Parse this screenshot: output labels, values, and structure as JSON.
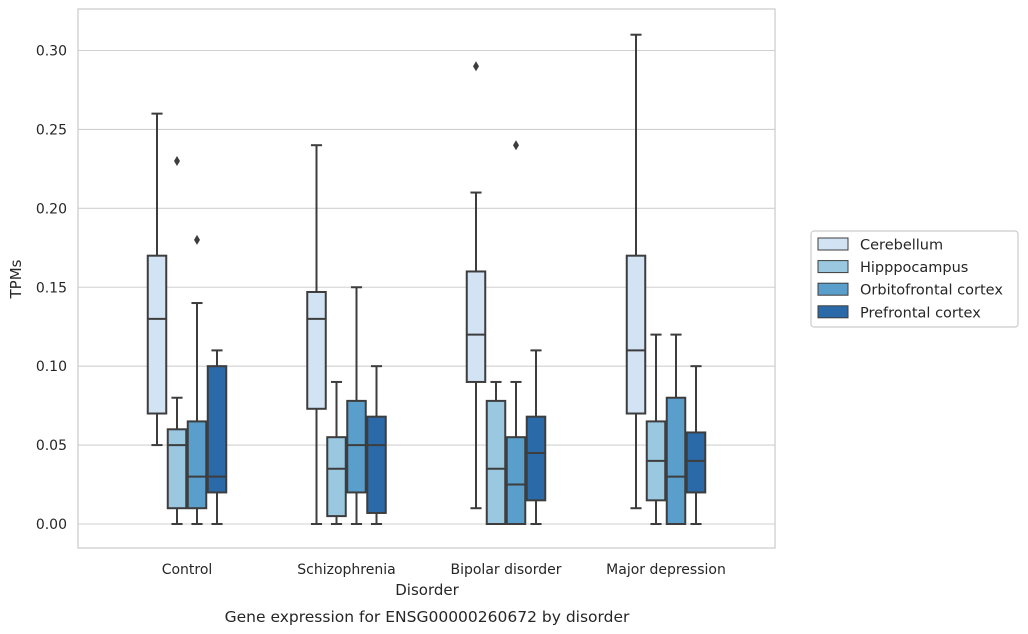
{
  "chart_data": {
    "type": "box",
    "caption": "Gene expression for ENSG00000260672 by disorder",
    "xlabel": "Disorder",
    "ylabel": "TPMs",
    "ylim": [
      -0.015,
      0.325
    ],
    "yticks": [
      "0.00",
      "0.05",
      "0.10",
      "0.15",
      "0.20",
      "0.25",
      "0.30"
    ],
    "grid": "horizontal",
    "legend_position": "right",
    "categories": [
      "Control",
      "Schizophrenia",
      "Bipolar disorder",
      "Major depression"
    ],
    "series": [
      {
        "name": "Cerebellum",
        "color": "#d2e3f3",
        "boxes": [
          {
            "whislo": 0.05,
            "q1": 0.07,
            "med": 0.13,
            "q3": 0.17,
            "whishi": 0.26,
            "fliers": []
          },
          {
            "whislo": 0.0,
            "q1": 0.073,
            "med": 0.13,
            "q3": 0.147,
            "whishi": 0.24,
            "fliers": []
          },
          {
            "whislo": 0.01,
            "q1": 0.09,
            "med": 0.12,
            "q3": 0.16,
            "whishi": 0.21,
            "fliers": [
              0.29
            ]
          },
          {
            "whislo": 0.01,
            "q1": 0.07,
            "med": 0.11,
            "q3": 0.17,
            "whishi": 0.31,
            "fliers": []
          }
        ]
      },
      {
        "name": "Hipppocampus",
        "color": "#9ac8e0",
        "boxes": [
          {
            "whislo": 0.0,
            "q1": 0.01,
            "med": 0.05,
            "q3": 0.06,
            "whishi": 0.08,
            "fliers": [
              0.23
            ]
          },
          {
            "whislo": 0.0,
            "q1": 0.005,
            "med": 0.035,
            "q3": 0.055,
            "whishi": 0.09,
            "fliers": []
          },
          {
            "whislo": 0.0,
            "q1": 0.0,
            "med": 0.035,
            "q3": 0.078,
            "whishi": 0.09,
            "fliers": []
          },
          {
            "whislo": 0.0,
            "q1": 0.015,
            "med": 0.04,
            "q3": 0.065,
            "whishi": 0.12,
            "fliers": []
          }
        ]
      },
      {
        "name": "Orbitofrontal cortex",
        "color": "#5a9fcc",
        "boxes": [
          {
            "whislo": 0.0,
            "q1": 0.01,
            "med": 0.03,
            "q3": 0.065,
            "whishi": 0.14,
            "fliers": [
              0.18
            ]
          },
          {
            "whislo": 0.0,
            "q1": 0.02,
            "med": 0.05,
            "q3": 0.078,
            "whishi": 0.15,
            "fliers": []
          },
          {
            "whislo": 0.0,
            "q1": 0.0,
            "med": 0.025,
            "q3": 0.055,
            "whishi": 0.09,
            "fliers": [
              0.24
            ]
          },
          {
            "whislo": 0.0,
            "q1": 0.0,
            "med": 0.03,
            "q3": 0.08,
            "whishi": 0.12,
            "fliers": []
          }
        ]
      },
      {
        "name": "Prefrontal cortex",
        "color": "#2b6aa9",
        "boxes": [
          {
            "whislo": 0.0,
            "q1": 0.02,
            "med": 0.03,
            "q3": 0.1,
            "whishi": 0.11,
            "fliers": []
          },
          {
            "whislo": 0.0,
            "q1": 0.007,
            "med": 0.05,
            "q3": 0.068,
            "whishi": 0.1,
            "fliers": []
          },
          {
            "whislo": 0.0,
            "q1": 0.015,
            "med": 0.045,
            "q3": 0.068,
            "whishi": 0.11,
            "fliers": []
          },
          {
            "whislo": 0.0,
            "q1": 0.02,
            "med": 0.04,
            "q3": 0.058,
            "whishi": 0.1,
            "fliers": []
          }
        ]
      }
    ]
  }
}
